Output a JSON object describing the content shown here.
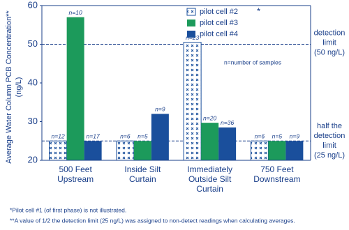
{
  "chart_data": {
    "type": "bar",
    "y_label": [
      "Average Water Column PCB Concentration**",
      "(ng/L)"
    ],
    "categories": [
      "500 Feet\nUpstream",
      "Inside Silt\nCurtain",
      "Immediately\nOutside Silt\nCurtain",
      "750 Feet\nDownstream"
    ],
    "series": [
      {
        "name": "pilot cell #2",
        "note": "*",
        "color": "#1a4f9c",
        "pattern": "hatch",
        "values": [
          25,
          25,
          50.5,
          25
        ],
        "sample_labels": [
          "n=12",
          "n=6",
          "n=23",
          "n=6"
        ]
      },
      {
        "name": "pilot cell #3",
        "color": "#1c9a5b",
        "values": [
          57,
          25,
          29.7,
          25
        ],
        "sample_labels": [
          "n=10",
          "n=5",
          "n=20",
          "n=5"
        ]
      },
      {
        "name": "pilot cell #4",
        "color": "#1a4f9c",
        "values": [
          25,
          32,
          28.5,
          25
        ],
        "sample_labels": [
          "n=17",
          "n=9",
          "n=36",
          "n=9"
        ]
      }
    ],
    "ylim": [
      20,
      60
    ],
    "yticks": [
      20,
      30,
      40,
      50,
      60
    ],
    "reference_lines": [
      {
        "value": 50,
        "label": [
          "detection",
          "limit",
          "(50 ng/L)"
        ]
      },
      {
        "value": 25,
        "label": [
          "half the",
          "detection",
          "limit",
          "(25 ng/L)"
        ]
      }
    ],
    "annotation": "n=number of samples",
    "legend": "upper right",
    "footnotes": [
      "*Pilot cell #1 (of first phase) is not illustrated.",
      "**A value of 1/2 the detection limit (25 ng/L) was assigned to non-detect readings when calculating averages."
    ]
  }
}
